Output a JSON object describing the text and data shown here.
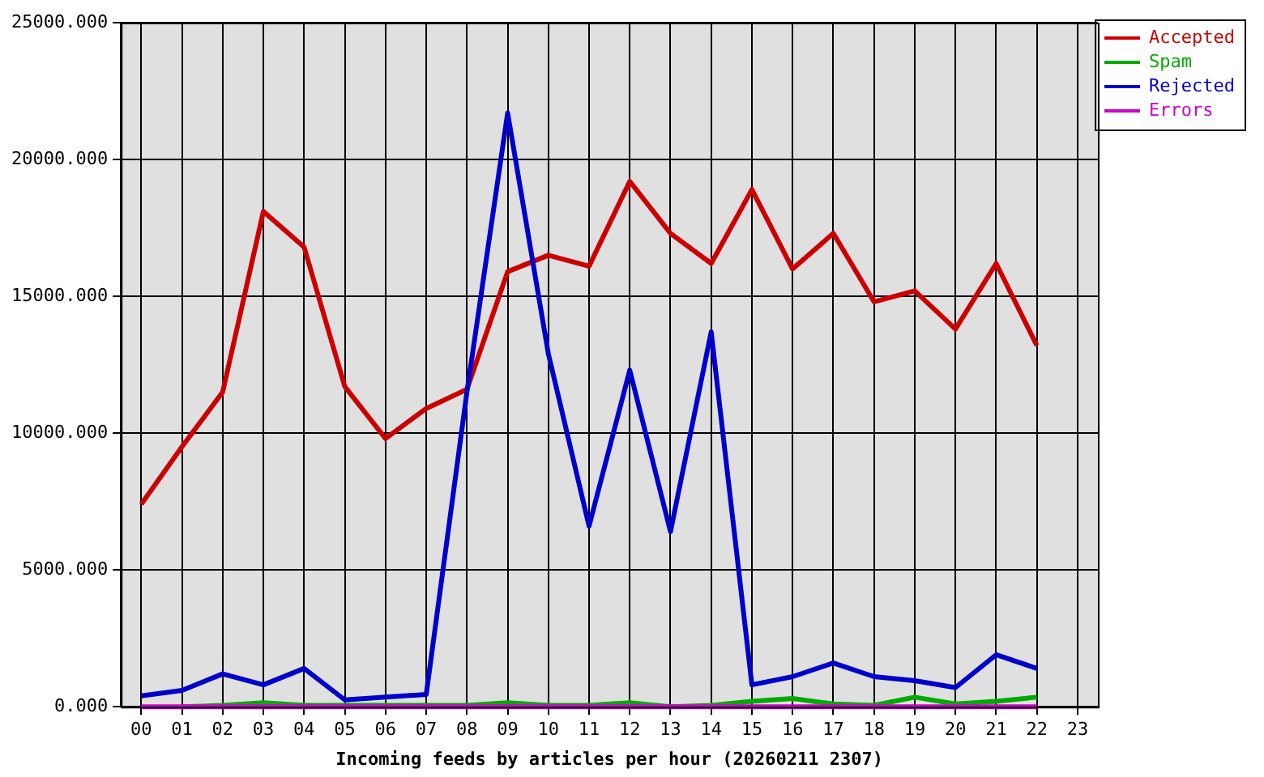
{
  "chart_data": {
    "type": "line",
    "xlabel": "Incoming feeds by articles per hour (20260211 2307)",
    "categories": [
      "00",
      "01",
      "02",
      "03",
      "04",
      "05",
      "06",
      "07",
      "08",
      "09",
      "10",
      "11",
      "12",
      "13",
      "14",
      "15",
      "16",
      "17",
      "18",
      "19",
      "20",
      "21",
      "22",
      "23"
    ],
    "series": [
      {
        "name": "Accepted",
        "color": "#cc0000",
        "values": [
          7400,
          9500,
          11500,
          18100,
          16800,
          11700,
          9800,
          10900,
          11600,
          15900,
          16500,
          16100,
          19200,
          17300,
          16200,
          18900,
          16000,
          17300,
          14800,
          15200,
          13800,
          16200,
          13200,
          null
        ]
      },
      {
        "name": "Spam",
        "color": "#00aa00",
        "values": [
          null,
          0,
          50,
          150,
          50,
          50,
          50,
          50,
          50,
          150,
          50,
          50,
          150,
          0,
          50,
          200,
          300,
          100,
          50,
          350,
          100,
          200,
          350,
          null
        ]
      },
      {
        "name": "Rejected",
        "color": "#0000cc",
        "values": [
          400,
          600,
          1200,
          800,
          1400,
          250,
          350,
          450,
          11500,
          21700,
          12900,
          6600,
          12300,
          6400,
          13700,
          800,
          1100,
          1600,
          1100,
          950,
          700,
          1900,
          1400,
          null
        ]
      },
      {
        "name": "Errors",
        "color": "#cc00cc",
        "values": [
          0,
          0,
          0,
          0,
          0,
          0,
          0,
          0,
          0,
          0,
          0,
          0,
          0,
          0,
          0,
          0,
          0,
          0,
          0,
          0,
          0,
          0,
          0,
          null
        ]
      }
    ],
    "ylim": [
      0,
      25000
    ],
    "yticks": [
      {
        "value": 0,
        "label": "0.000"
      },
      {
        "value": 5000,
        "label": "5000.000"
      },
      {
        "value": 10000,
        "label": "10000.000"
      },
      {
        "value": 15000,
        "label": "15000.000"
      },
      {
        "value": 20000,
        "label": "20000.000"
      },
      {
        "value": 25000,
        "label": "25000.000"
      }
    ],
    "grid": true,
    "legend": "top right",
    "marker": "none",
    "line_style": "solid"
  }
}
